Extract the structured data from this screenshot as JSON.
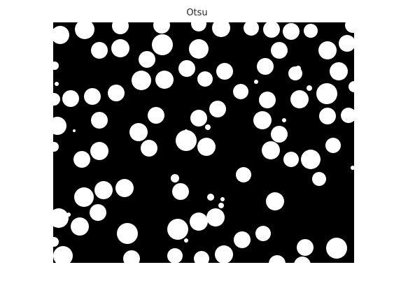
{
  "figure": {
    "title": "Otsu"
  },
  "image": {
    "description_kind": "binary-threshold-mask",
    "background_color": "#000000",
    "foreground_color": "#ffffff"
  }
}
